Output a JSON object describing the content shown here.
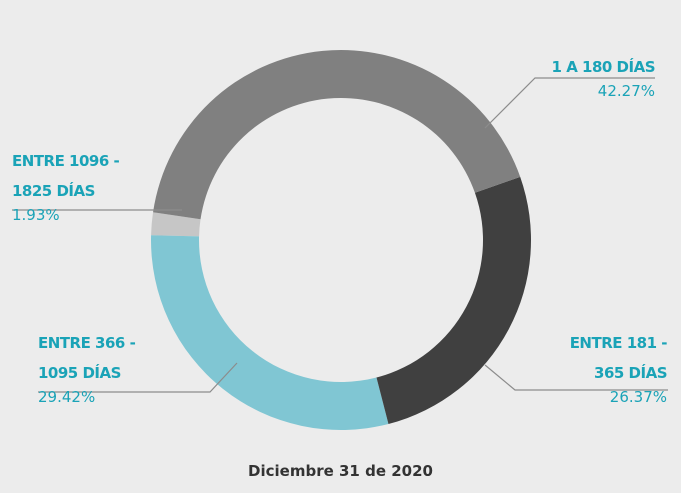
{
  "chart_data": {
    "type": "donut",
    "title": "Diciembre 31 de 2020",
    "categories": [
      "1  A 180 DÍAS",
      "ENTRE 181 - 365 DÍAS",
      "ENTRE 366 - 1095 DÍAS",
      "ENTRE  1096 - 1825 DÍAS"
    ],
    "values": [
      42.27,
      26.37,
      29.42,
      1.93
    ],
    "value_labels": [
      "42.27%",
      "26.37%",
      "29.42%",
      "1.93%"
    ],
    "colors": [
      "#808080",
      "#404040",
      "#80c6d3",
      "#c6c6c6"
    ]
  }
}
